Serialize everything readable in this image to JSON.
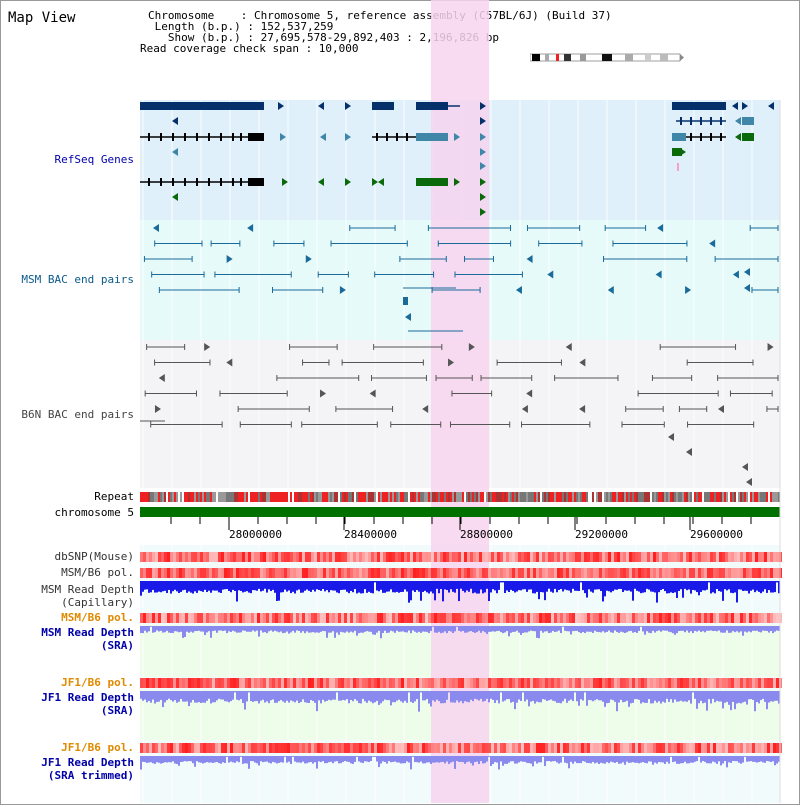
{
  "title": "Map View",
  "info": {
    "chromosome": "Chromosome    : Chromosome 5, reference assembly (C57BL/6J) (Build 37)",
    "length": " Length (b.p.) : 152,537,259",
    "show": "   Show (b.p.) : 27,695,578-29,892,403 : 2,196,826 bp",
    "read_cov": "Read coverage check span : 10,000"
  },
  "labels": {
    "refseq": "RefSeq Genes",
    "msm_bac": "MSM BAC end pairs",
    "b6n_bac": "B6N BAC end pairs",
    "repeat": "Repeat",
    "chromosome": "chromosome 5",
    "dbsnp": "dbSNP(Mouse)",
    "msm_b6_pol": "MSM/B6 pol.",
    "msm_depth_cap_1": "MSM Read Depth",
    "msm_depth_cap_2": "(Capillary)",
    "msm_b6_pol2": "MSM/B6 pol.",
    "msm_depth_sra_1": "MSM Read Depth",
    "msm_depth_sra_2": "(SRA)",
    "jf1_b6_pol": "JF1/B6 pol.",
    "jf1_depth_1": "JF1 Read Depth",
    "jf1_depth_2": "(SRA)",
    "jf1_b6_pol2": "JF1/B6 pol.",
    "jf1_trim_1": "JF1 Read Depth",
    "jf1_trim_2": "(SRA trimmed)"
  },
  "axis": {
    "ticks": [
      "28000000",
      "28400000",
      "28800000",
      "29200000",
      "29600000"
    ]
  },
  "colors": {
    "refseq_bg": "#dff0fa",
    "msm_bg": "#e6fafa",
    "b6n_bg": "#f4f4f6",
    "highlight": "#f7d3ef",
    "chrom_bar": "#007000",
    "gene_dark": "#05306a",
    "gene_mid": "#3f86a8",
    "gene_green": "#0a6a0a",
    "bac_blue": "#1a6a9a",
    "bac_grey": "#555555",
    "depth_blue": "#1a1ae8",
    "depth_lav": "#8a8aee",
    "pol_red": "#ee2222",
    "label_blue": "#0000aa",
    "label_orange": "#e08a00"
  }
}
